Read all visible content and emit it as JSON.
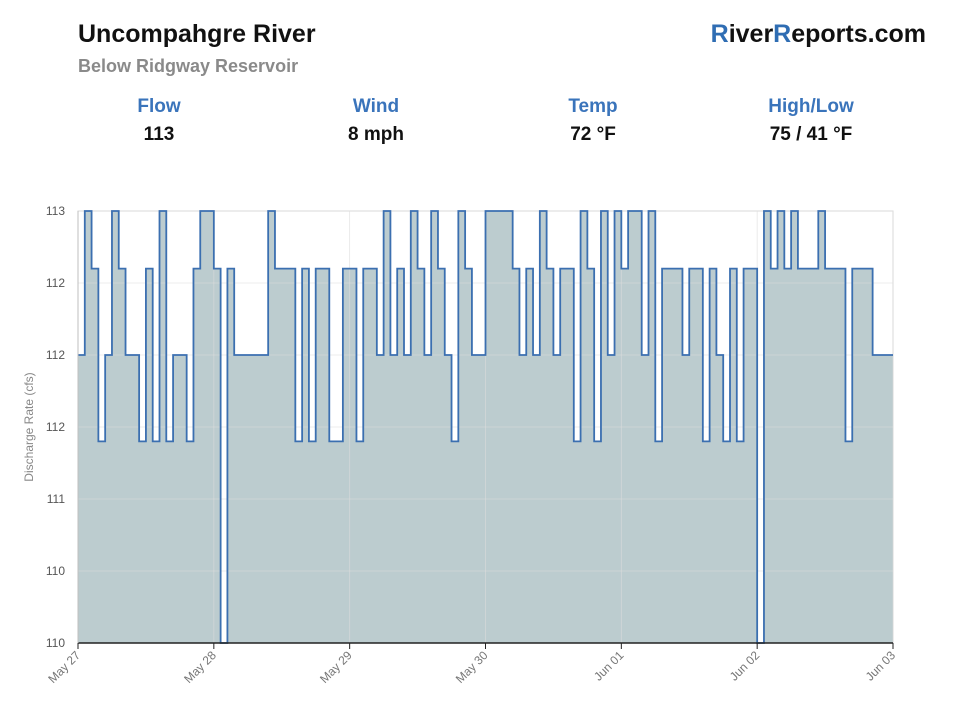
{
  "header": {
    "title": "Uncompahgre River",
    "subtitle": "Below Ridgway Reservoir",
    "brand_first": "R",
    "brand_mid": "iver",
    "brand_second": "R",
    "brand_rest": "eports.com"
  },
  "stats": [
    {
      "label": "Flow",
      "value": "113"
    },
    {
      "label": "Wind",
      "value": "8 mph"
    },
    {
      "label": "Temp",
      "value": "72 °F"
    },
    {
      "label": "High/Low",
      "value": "75 / 41 °F"
    }
  ],
  "colors": {
    "accent": "#2f6db3",
    "line": "#3b6fb0",
    "fill": "#bccccf"
  },
  "chart_data": {
    "type": "area",
    "ylabel": "Discharge Rate (cfs)",
    "xlabel": "",
    "y_tick_labels": [
      "113",
      "112",
      "112",
      "112",
      "111",
      "110",
      "110"
    ],
    "ylim": [
      110.0,
      113.0
    ],
    "x_tick_labels": [
      "May 27",
      "May 28",
      "May 29",
      "May 30",
      "Jun 01",
      "Jun 02",
      "Jun 03"
    ],
    "grid": true,
    "x_days": [
      0.0,
      0.05,
      0.1,
      0.15,
      0.2,
      0.25,
      0.3,
      0.35,
      0.4,
      0.45,
      0.5,
      0.55,
      0.6,
      0.65,
      0.7,
      0.75,
      0.8,
      0.85,
      0.9,
      0.95,
      1.0,
      1.05,
      1.1,
      1.15,
      1.2,
      1.25,
      1.3,
      1.35,
      1.4,
      1.45,
      1.5,
      1.55,
      1.6,
      1.65,
      1.7,
      1.75,
      1.8,
      1.85,
      1.9,
      1.95,
      2.0,
      2.05,
      2.1,
      2.15,
      2.2,
      2.25,
      2.3,
      2.35,
      2.4,
      2.45,
      2.5,
      2.55,
      2.6,
      2.65,
      2.7,
      2.75,
      2.8,
      2.85,
      2.9,
      2.95,
      3.0,
      3.05,
      3.1,
      3.15,
      3.2,
      3.25,
      3.3,
      3.35,
      3.4,
      3.45,
      3.5,
      3.55,
      3.6,
      3.65,
      3.7,
      3.75,
      3.8,
      3.85,
      3.9,
      3.95,
      4.0,
      4.05,
      4.1,
      4.15,
      4.2,
      4.25,
      4.3,
      4.35,
      4.4,
      4.45,
      4.5,
      4.55,
      4.6,
      4.65,
      4.7,
      4.75,
      4.8,
      4.85,
      4.9,
      4.95,
      5.0,
      5.05,
      5.1,
      5.15,
      5.2,
      5.25,
      5.3,
      5.35,
      5.4,
      5.45,
      5.5,
      5.55,
      5.6,
      5.65,
      5.7,
      5.75,
      5.8,
      5.85,
      5.9,
      5.95
    ],
    "flow_cfs": [
      112.0,
      113.0,
      112.6,
      111.4,
      112.0,
      113.0,
      112.6,
      112.0,
      112.0,
      111.4,
      112.6,
      111.4,
      113.0,
      111.4,
      112.0,
      112.0,
      111.4,
      112.6,
      113.0,
      113.0,
      112.6,
      110.0,
      112.6,
      112.0,
      112.0,
      112.0,
      112.0,
      112.0,
      113.0,
      112.6,
      112.6,
      112.6,
      111.4,
      112.6,
      111.4,
      112.6,
      112.6,
      111.4,
      111.4,
      112.6,
      112.6,
      111.4,
      112.6,
      112.6,
      112.0,
      113.0,
      112.0,
      112.6,
      112.0,
      113.0,
      112.6,
      112.0,
      113.0,
      112.6,
      112.0,
      111.4,
      113.0,
      112.6,
      112.0,
      112.0,
      113.0,
      113.0,
      113.0,
      113.0,
      112.6,
      112.0,
      112.6,
      112.0,
      113.0,
      112.6,
      112.0,
      112.6,
      112.6,
      111.4,
      113.0,
      112.6,
      111.4,
      113.0,
      112.0,
      113.0,
      112.6,
      113.0,
      113.0,
      112.0,
      113.0,
      111.4,
      112.6,
      112.6,
      112.6,
      112.0,
      112.6,
      112.6,
      111.4,
      112.6,
      112.0,
      111.4,
      112.6,
      111.4,
      112.6,
      112.6,
      110.0,
      113.0,
      112.6,
      113.0,
      112.6,
      113.0,
      112.6,
      112.6,
      112.6,
      113.0,
      112.6,
      112.6,
      112.6,
      111.4,
      112.6,
      112.6,
      112.6,
      112.0,
      112.0,
      112.0
    ]
  }
}
